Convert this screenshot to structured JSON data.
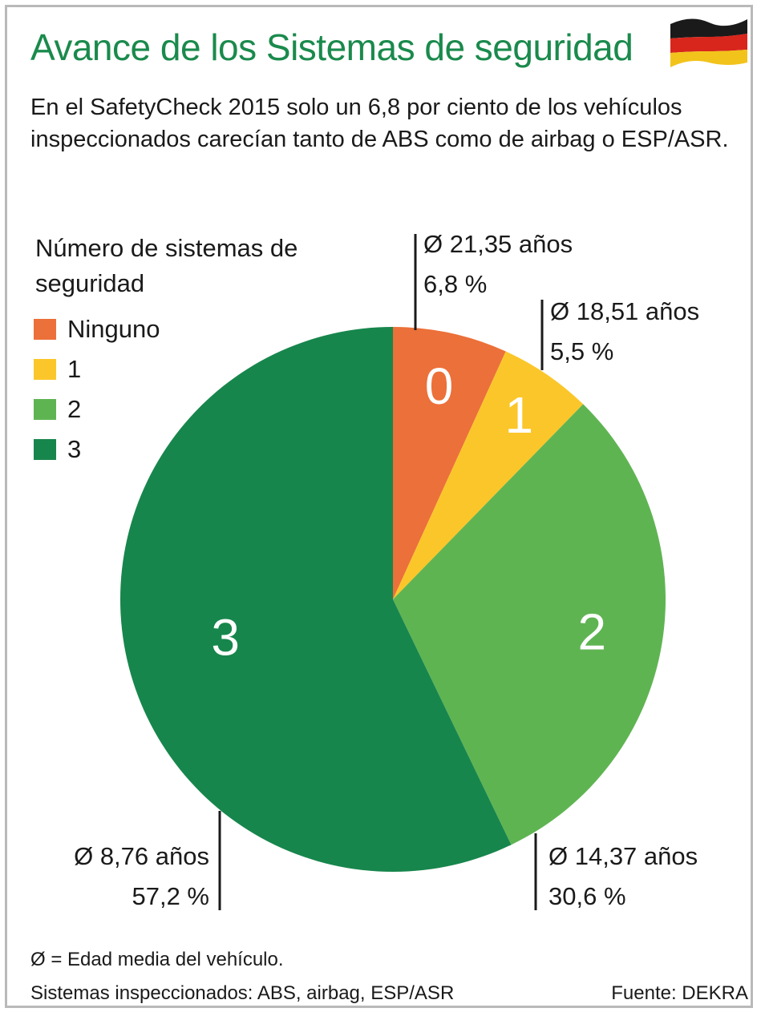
{
  "header": {
    "title": "Avance de los Sistemas de seguridad",
    "subtitle": "En el SafetyCheck 2015 solo un 6,8 por ciento de los vehículos inspeccionados carecían tanto de ABS como de airbag o ESP/ASR."
  },
  "legend": {
    "title": "Número de sistemas de seguridad",
    "items": [
      {
        "label": "Ninguno",
        "color": "#ec7039"
      },
      {
        "label": "1",
        "color": "#fbc62a"
      },
      {
        "label": "2",
        "color": "#5fb452"
      },
      {
        "label": "3",
        "color": "#17864c"
      }
    ]
  },
  "chart_data": {
    "type": "pie",
    "categories": [
      "Ninguno",
      "1",
      "2",
      "3"
    ],
    "slice_labels": [
      "0",
      "1",
      "2",
      "3"
    ],
    "values": [
      6.8,
      5.5,
      30.6,
      57.2
    ],
    "value_labels": [
      "6,8 %",
      "5,5 %",
      "30,6 %",
      "57,2 %"
    ],
    "avg_age_labels": [
      "Ø 21,35 años",
      "Ø 18,51 años",
      "Ø 14,37 años",
      "Ø 8,76 años"
    ],
    "colors": [
      "#ec7039",
      "#fbc62a",
      "#5fb452",
      "#17864c"
    ],
    "start": "top, clockwise",
    "legend_position": "top-left"
  },
  "footer": {
    "note": "Ø = Edad media del vehículo.",
    "systems": "Sistemas inspeccionados: ABS, airbag, ESP/ASR",
    "source": "Fuente: DEKRA"
  },
  "flag": {
    "icon": "germany-flag-icon",
    "colors": [
      "#1a1a1a",
      "#d8261c",
      "#f2c31b"
    ]
  }
}
